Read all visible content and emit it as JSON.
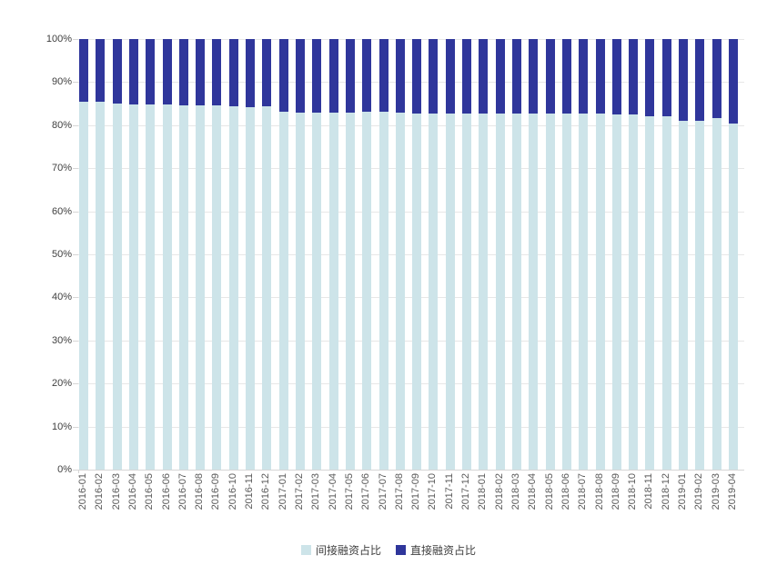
{
  "chart_data": {
    "type": "bar",
    "stacked": true,
    "percent": true,
    "title": "",
    "xlabel": "",
    "ylabel": "",
    "ylim": [
      0,
      100
    ],
    "grid": true,
    "legend_position": "bottom",
    "y_ticks": [
      "100%",
      "90%",
      "80%",
      "70%",
      "60%",
      "50%",
      "40%",
      "30%",
      "20%",
      "10%",
      "0%"
    ],
    "categories": [
      "2016-01",
      "2016-02",
      "2016-03",
      "2016-04",
      "2016-05",
      "2016-06",
      "2016-07",
      "2016-08",
      "2016-09",
      "2016-10",
      "2016-11",
      "2016-12",
      "2017-01",
      "2017-02",
      "2017-03",
      "2017-04",
      "2017-05",
      "2017-06",
      "2017-07",
      "2017-08",
      "2017-09",
      "2017-10",
      "2017-11",
      "2017-12",
      "2018-01",
      "2018-02",
      "2018-03",
      "2018-04",
      "2018-05",
      "2018-06",
      "2018-07",
      "2018-08",
      "2018-09",
      "2018-10",
      "2018-11",
      "2018-12",
      "2019-01",
      "2019-02",
      "2019-03",
      "2019-04"
    ],
    "series": [
      {
        "name": "间接融资占比",
        "color": "#cde4e9",
        "values": [
          85.5,
          85.4,
          85.1,
          84.9,
          84.9,
          84.8,
          84.7,
          84.6,
          84.5,
          84.3,
          84.2,
          84.3,
          83.1,
          83.0,
          82.9,
          83.0,
          83.0,
          83.1,
          83.1,
          82.9,
          82.7,
          82.6,
          82.7,
          82.7,
          82.8,
          82.7,
          82.6,
          82.8,
          82.7,
          82.7,
          82.7,
          82.6,
          82.5,
          82.4,
          82.1,
          82.0,
          81.0,
          81.0,
          81.7,
          80.3
        ]
      },
      {
        "name": "直接融资占比",
        "color": "#2f369b",
        "values": [
          14.5,
          14.6,
          14.9,
          15.1,
          15.1,
          15.2,
          15.3,
          15.4,
          15.5,
          15.7,
          15.8,
          15.7,
          16.9,
          17.0,
          17.1,
          17.0,
          17.0,
          16.9,
          16.9,
          17.1,
          17.3,
          17.4,
          17.3,
          17.3,
          17.2,
          17.3,
          17.4,
          17.2,
          17.3,
          17.3,
          17.3,
          17.4,
          17.5,
          17.6,
          17.9,
          18.0,
          19.0,
          19.0,
          18.3,
          19.7
        ]
      }
    ],
    "colors": {
      "gridline": "#e7e7e7",
      "axis_line": "#d6d6d6",
      "y_label": "#404040",
      "x_label": "#595959",
      "background": "#ffffff"
    }
  }
}
